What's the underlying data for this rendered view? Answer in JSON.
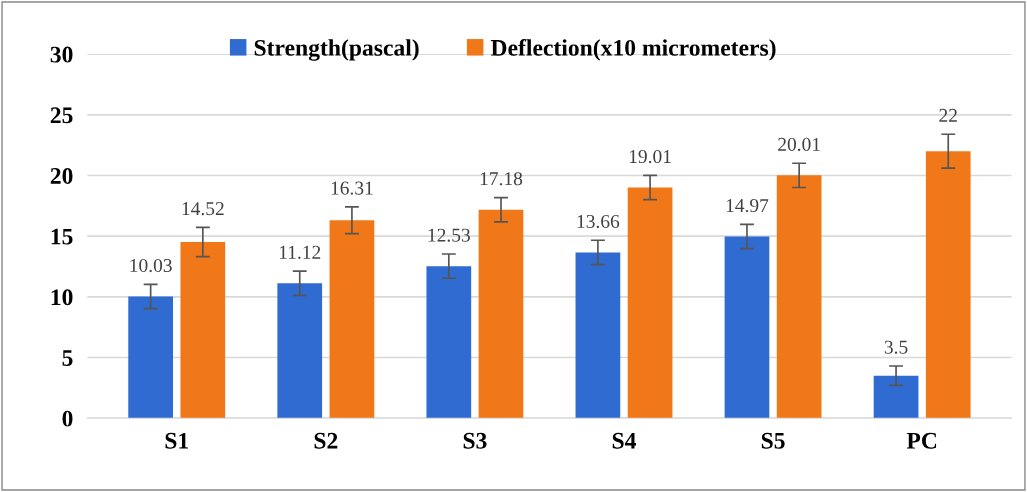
{
  "chart_data": {
    "type": "bar",
    "categories": [
      "S1",
      "S2",
      "S3",
      "S4",
      "S5",
      "PC"
    ],
    "series": [
      {
        "name": "Strength(pascal)",
        "color": "#2f6bd0",
        "values": [
          10.03,
          11.12,
          12.53,
          13.66,
          14.97,
          3.5
        ],
        "errors": [
          1,
          1,
          1,
          1,
          1,
          0.8
        ]
      },
      {
        "name": "Deflection(x10 micrometers)",
        "color": "#f07818",
        "values": [
          14.52,
          16.31,
          17.18,
          19.01,
          20.01,
          22
        ],
        "errors": [
          1.2,
          1.1,
          1,
          1,
          1,
          1.4
        ]
      }
    ],
    "ylim": [
      0,
      30
    ],
    "yticks": [
      0,
      5,
      10,
      15,
      20,
      25,
      30
    ],
    "grid": "y",
    "legend": "top",
    "data_labels": true
  }
}
